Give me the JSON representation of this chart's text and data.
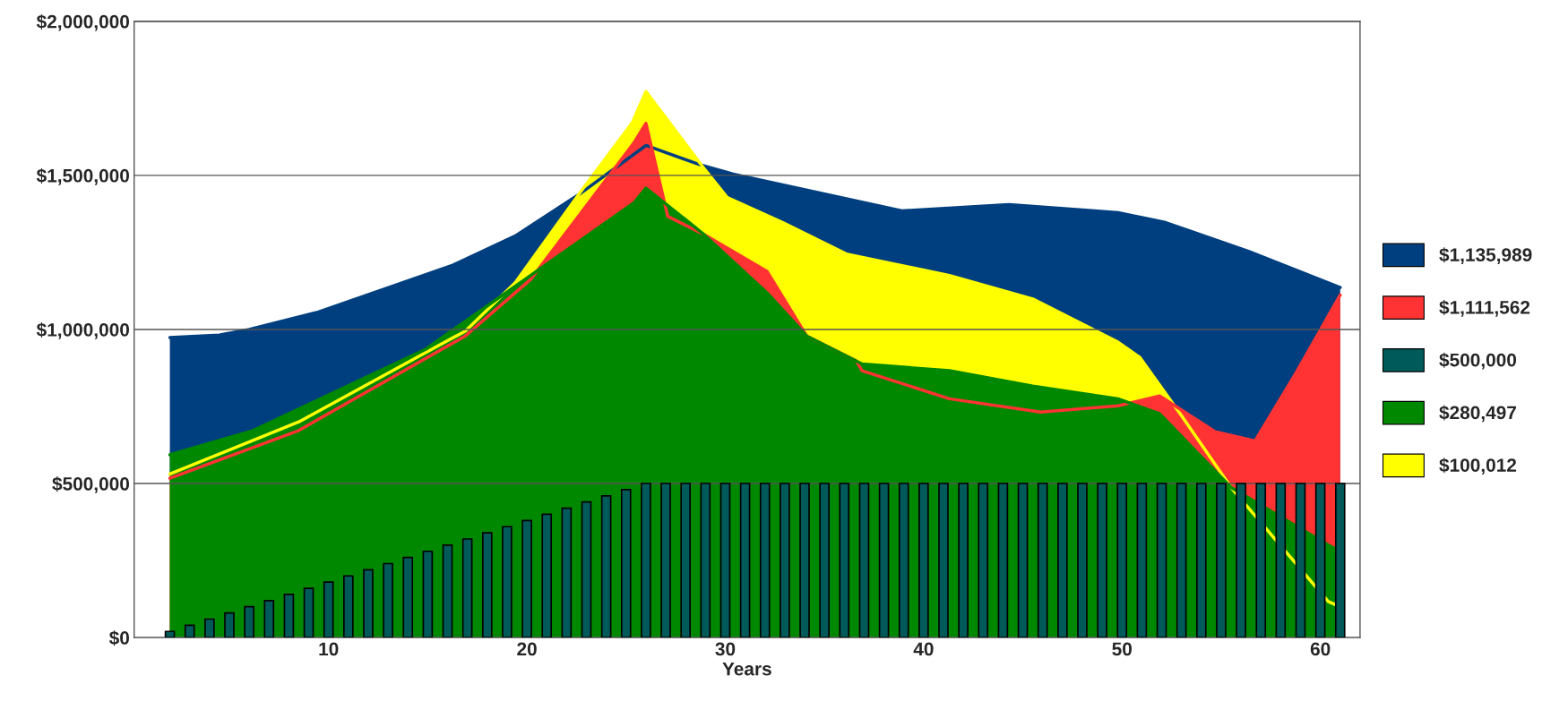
{
  "chart_data": {
    "type": "area",
    "xlabel": "Years",
    "xlim": [
      0.2,
      62.0
    ],
    "xticks": [
      10,
      20,
      30,
      40,
      50,
      60
    ],
    "ylim": [
      0,
      2000000
    ],
    "yticks": [
      {
        "value": 0,
        "label": "$0"
      },
      {
        "value": 500000,
        "label": "$500,000"
      },
      {
        "value": 1000000,
        "label": "$1,000,000"
      },
      {
        "value": 1500000,
        "label": "$1,500,000"
      },
      {
        "value": 2000000,
        "label": "$2,000,000"
      }
    ],
    "grid": "y",
    "legend": "right",
    "series": [
      {
        "name": "$1,135,989",
        "color": "#003f7f",
        "x": [
          2,
          4.5,
          6,
          9.4,
          16.2,
          19.4,
          22.6,
          26,
          28.8,
          30.4,
          38.9,
          44.3,
          48,
          49.8,
          52.2,
          56.4,
          61
        ],
        "values": [
          974000,
          982000,
          1000000,
          1055000,
          1207000,
          1303000,
          1437000,
          1597000,
          1533000,
          1504000,
          1385000,
          1405000,
          1388000,
          1379000,
          1347000,
          1253000,
          1136000
        ]
      },
      {
        "name": "$100,012",
        "color": "#ffff00",
        "x": [
          2,
          8.5,
          14.9,
          16.9,
          19.4,
          22.6,
          25.3,
          26,
          27.2,
          28.8,
          30.1,
          32.9,
          36.1,
          41.3,
          45.5,
          49.8,
          50.9,
          53,
          55.5,
          60.4,
          61
        ],
        "values": [
          531000,
          700000,
          925000,
          995000,
          1151000,
          1437000,
          1670000,
          1772000,
          1670000,
          1533000,
          1428000,
          1347000,
          1245000,
          1175000,
          1099000,
          959000,
          909000,
          720000,
          487000,
          117000,
          100000
        ]
      },
      {
        "name": "$1,111,562",
        "color": "#ff3333",
        "x": [
          2,
          8.5,
          16.9,
          20.2,
          25.4,
          26,
          27.1,
          28.9,
          32.1,
          34.1,
          36.6,
          36.9,
          41.3,
          45.9,
          49.8,
          51.9,
          54.7,
          56.7,
          58.7,
          61
        ],
        "values": [
          517000,
          672000,
          979000,
          1163000,
          1606000,
          1669000,
          1367000,
          1309000,
          1189000,
          979000,
          898000,
          866000,
          775000,
          732000,
          752000,
          784000,
          668000,
          638000,
          851000,
          1112000
        ]
      },
      {
        "name": "$280,497",
        "color": "#008800",
        "x": [
          2,
          6.2,
          14.9,
          25.4,
          26,
          28.8,
          32.1,
          34.1,
          36.9,
          41.3,
          45.5,
          49.8,
          51.9,
          55.5,
          60.4,
          61
        ],
        "values": [
          593000,
          672000,
          936000,
          1411000,
          1459000,
          1315000,
          1119000,
          979000,
          888000,
          866000,
          816000,
          775000,
          726000,
          487000,
          300000,
          280000
        ]
      },
      {
        "name": "$500,000",
        "type": "bar",
        "color": "#005a5a",
        "x": [
          2,
          3,
          4,
          5,
          6,
          7,
          8,
          9,
          10,
          11,
          12,
          13,
          14,
          15,
          16,
          17,
          18,
          19,
          20,
          21,
          22,
          23,
          24,
          25,
          26,
          27,
          28,
          29,
          30,
          31,
          32,
          33,
          34,
          35,
          36,
          37,
          38,
          39,
          40,
          41,
          42,
          43,
          44,
          45,
          46,
          47,
          48,
          49,
          50,
          51,
          52,
          53,
          54,
          55,
          56,
          57,
          58,
          59,
          60,
          61
        ],
        "values": [
          20000,
          40000,
          60000,
          80000,
          100000,
          120000,
          140000,
          160000,
          180000,
          200000,
          220000,
          240000,
          260000,
          280000,
          300000,
          320000,
          340000,
          360000,
          380000,
          400000,
          420000,
          440000,
          460000,
          480000,
          500000,
          500000,
          500000,
          500000,
          500000,
          500000,
          500000,
          500000,
          500000,
          500000,
          500000,
          500000,
          500000,
          500000,
          500000,
          500000,
          500000,
          500000,
          500000,
          500000,
          500000,
          500000,
          500000,
          500000,
          500000,
          500000,
          500000,
          500000,
          500000,
          500000,
          500000,
          500000,
          500000,
          500000,
          500000,
          500000
        ]
      }
    ]
  }
}
